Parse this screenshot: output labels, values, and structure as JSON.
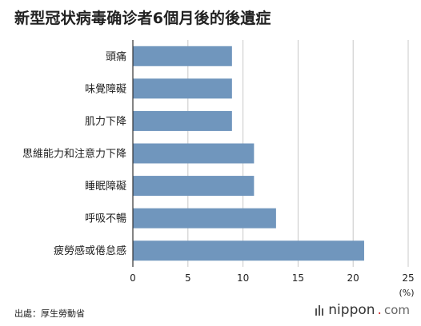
{
  "title": "新型冠状病毒确诊者6個月後的後遺症",
  "source": "出處：厚生勞動省",
  "logo": {
    "name": "nippon",
    "dot": ".",
    "tld": "com"
  },
  "colors": {
    "bar": "#7096bd",
    "grid": "#c8c8c8",
    "axis": "#333333"
  },
  "chart_data": {
    "type": "bar",
    "orientation": "horizontal",
    "title": "新型冠状病毒确诊者6個月後的後遺症",
    "categories": [
      "頭痛",
      "味覺障礙",
      "肌力下降",
      "思維能力和注意力下降",
      "睡眠障礙",
      "呼吸不暢",
      "疲勞感或倦怠感"
    ],
    "values": [
      9,
      9,
      9,
      11,
      11,
      13,
      21
    ],
    "xlim": [
      0,
      25
    ],
    "xticks": [
      0,
      5,
      10,
      15,
      20,
      25
    ],
    "xlabel": "(%)",
    "grid": true,
    "legend": "none"
  }
}
